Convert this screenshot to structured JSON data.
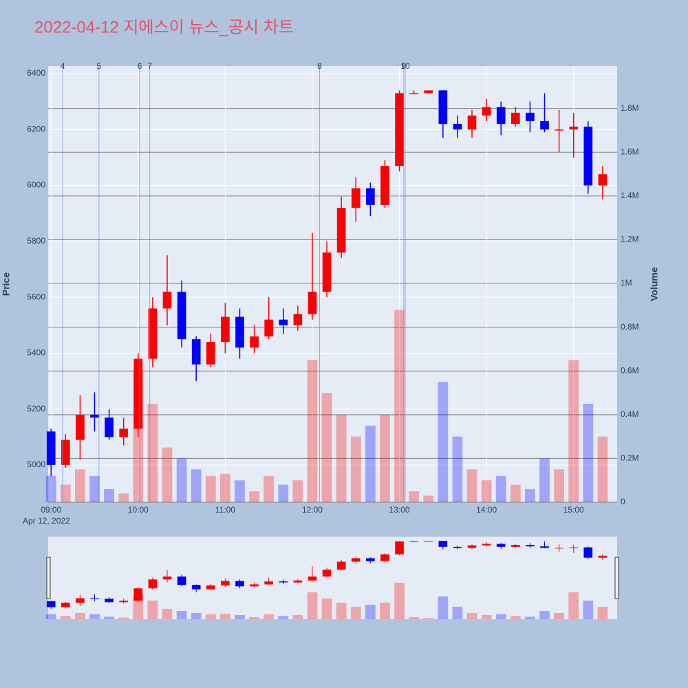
{
  "chart_data": {
    "type": "candlestick",
    "title": "2022-04-12 지에스이 뉴스_공시 차트",
    "title_color": "#e8506b",
    "x_date_label": "Apr 12, 2022",
    "y_title": "Price",
    "y2_title": "Volume",
    "up_color": "#ff0000",
    "down_color": "#0000ff",
    "x": [
      "09:00",
      "09:10",
      "09:20",
      "09:30",
      "09:40",
      "09:50",
      "10:00",
      "10:10",
      "10:20",
      "10:30",
      "10:40",
      "10:50",
      "11:00",
      "11:10",
      "11:20",
      "11:30",
      "11:40",
      "11:50",
      "12:00",
      "12:10",
      "12:20",
      "12:30",
      "12:40",
      "12:50",
      "13:00",
      "13:10",
      "13:20",
      "13:30",
      "13:40",
      "13:50",
      "14:00",
      "14:10",
      "14:20",
      "14:30",
      "14:40",
      "14:50",
      "15:00",
      "15:10",
      "15:20"
    ],
    "open": [
      5120,
      5000,
      5090,
      5180,
      5170,
      5100,
      5130,
      5380,
      5560,
      5620,
      5450,
      5360,
      5440,
      5530,
      5420,
      5460,
      5520,
      5500,
      5540,
      5620,
      5760,
      5920,
      5990,
      5930,
      6070,
      6330,
      6330,
      6340,
      6220,
      6200,
      6250,
      6280,
      6220,
      6260,
      6230,
      6200,
      6200,
      6210,
      6000
    ],
    "high": [
      5130,
      5110,
      5250,
      5260,
      5200,
      5170,
      5400,
      5600,
      5750,
      5660,
      5460,
      5470,
      5580,
      5560,
      5500,
      5600,
      5560,
      5570,
      5830,
      5800,
      5960,
      6030,
      6010,
      6090,
      6340,
      6340,
      6340,
      6340,
      6250,
      6270,
      6310,
      6300,
      6280,
      6300,
      6330,
      6270,
      6260,
      6230,
      6070
    ],
    "low": [
      4960,
      4990,
      5020,
      5120,
      5090,
      5070,
      5100,
      5350,
      5500,
      5420,
      5300,
      5350,
      5400,
      5380,
      5400,
      5450,
      5470,
      5480,
      5520,
      5600,
      5740,
      5870,
      5890,
      5920,
      6050,
      6330,
      6330,
      6170,
      6170,
      6170,
      6230,
      6180,
      6210,
      6190,
      6190,
      6120,
      6100,
      5970,
      5950
    ],
    "close": [
      5000,
      5090,
      5180,
      5170,
      5100,
      5130,
      5380,
      5560,
      5620,
      5450,
      5360,
      5440,
      5530,
      5420,
      5460,
      5520,
      5500,
      5540,
      5620,
      5760,
      5920,
      5990,
      5930,
      6070,
      6330,
      6330,
      6340,
      6220,
      6200,
      6250,
      6280,
      6220,
      6260,
      6230,
      6200,
      6200,
      6210,
      6000,
      6040
    ],
    "volume": [
      120000,
      80000,
      150000,
      120000,
      60000,
      40000,
      600000,
      450000,
      250000,
      200000,
      150000,
      120000,
      130000,
      100000,
      50000,
      120000,
      80000,
      100000,
      650000,
      500000,
      400000,
      300000,
      350000,
      400000,
      880000,
      50000,
      30000,
      550000,
      300000,
      150000,
      100000,
      120000,
      80000,
      60000,
      200000,
      150000,
      650000,
      450000,
      300000
    ],
    "xlim": [
      "08:58",
      "15:30"
    ],
    "xticks": [
      "09:00",
      "10:00",
      "11:00",
      "12:00",
      "13:00",
      "14:00",
      "15:00"
    ],
    "ylim": [
      4867,
      6427
    ],
    "yticks": [
      5000,
      5200,
      5400,
      5600,
      5800,
      6000,
      6200,
      6400
    ],
    "y2lim": [
      0,
      1994000
    ],
    "y2ticks": [
      0,
      {
        "value": 200000,
        "label": "0.2M"
      },
      {
        "value": 400000,
        "label": "0.4M"
      },
      {
        "value": 600000,
        "label": "0.6M"
      },
      {
        "value": 800000,
        "label": "0.8M"
      },
      {
        "value": 1000000,
        "label": "1M"
      },
      {
        "value": 1200000,
        "label": "1.2M"
      },
      {
        "value": 1400000,
        "label": "1.4M"
      },
      {
        "value": 1600000,
        "label": "1.6M"
      },
      {
        "value": 1800000,
        "label": "1.8M"
      }
    ],
    "events": [
      {
        "label": "4",
        "x": "09:08"
      },
      {
        "label": "5",
        "x": "09:33"
      },
      {
        "label": "6",
        "x": "10:01"
      },
      {
        "label": "7",
        "x": "10:08"
      },
      {
        "label": "8",
        "x": "12:05"
      },
      {
        "label": "9",
        "x": "13:03"
      },
      {
        "label": "10",
        "x": "13:04"
      }
    ]
  }
}
